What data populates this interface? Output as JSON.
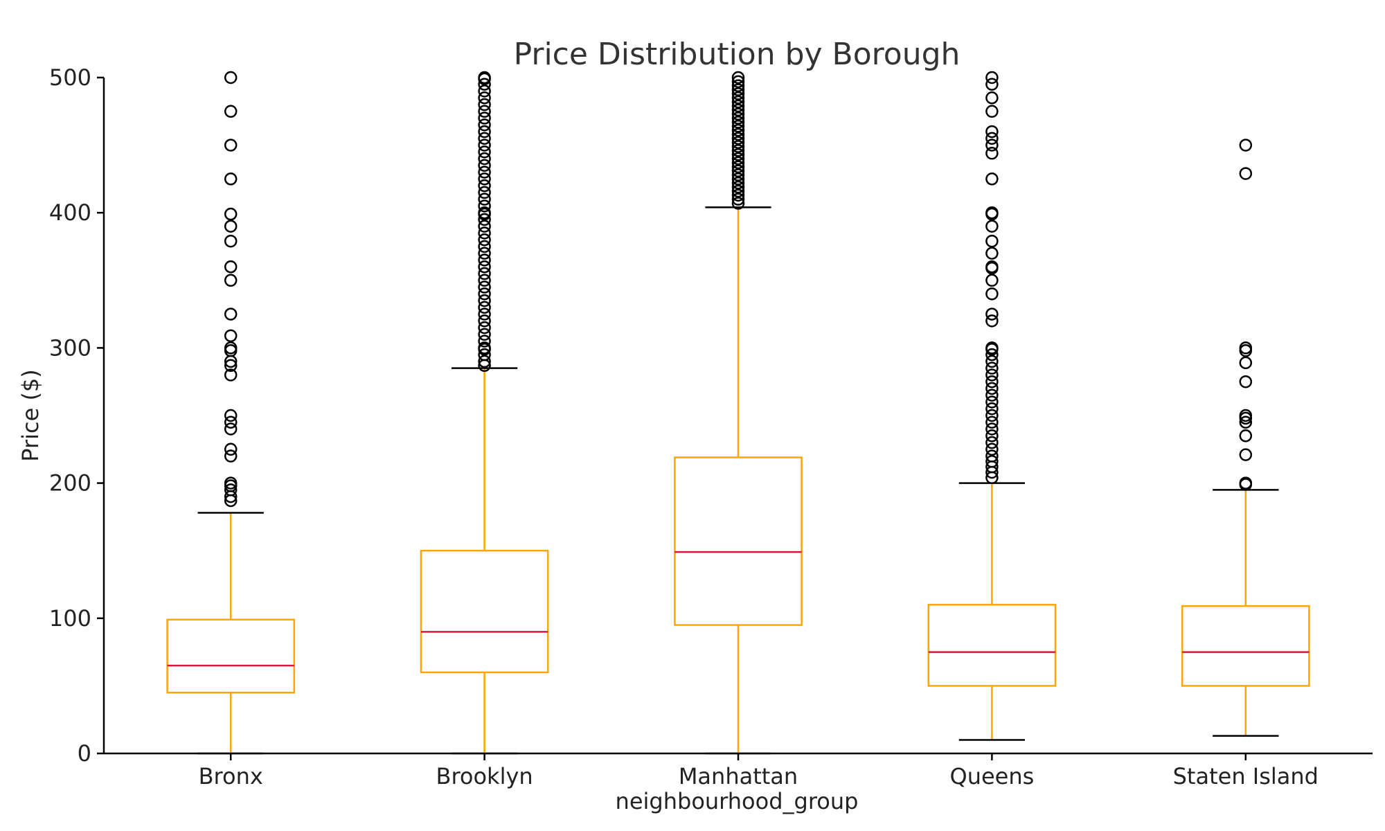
{
  "colors": {
    "box": "#FFA500",
    "median": "#DC143C",
    "cap": "#000000",
    "flier": "#000000",
    "axis": "#000000"
  },
  "chart_data": {
    "type": "box",
    "title": "Price Distribution by Borough",
    "xlabel": "neighbourhood_group",
    "ylabel": "Price ($)",
    "ylim": [
      0,
      500
    ],
    "yticks": [
      0,
      100,
      200,
      300,
      400,
      500
    ],
    "grid": false,
    "categories": [
      "Bronx",
      "Brooklyn",
      "Manhattan",
      "Queens",
      "Staten Island"
    ],
    "boxes": [
      {
        "category": "Bronx",
        "q1": 45,
        "median": 65,
        "q3": 99,
        "whisker_low": 0,
        "whisker_high": 178,
        "fliers": [
          187,
          190,
          195,
          198,
          200,
          220,
          225,
          240,
          245,
          250,
          280,
          287,
          290,
          298,
          300,
          309,
          325,
          350,
          360,
          379,
          390,
          399,
          425,
          450,
          475,
          500
        ]
      },
      {
        "category": "Brooklyn",
        "q1": 60,
        "median": 90,
        "q3": 150,
        "whisker_low": 0,
        "whisker_high": 285,
        "fliers": [
          287,
          290,
          295,
          299,
          300,
          305,
          310,
          315,
          320,
          325,
          330,
          335,
          340,
          345,
          350,
          355,
          360,
          365,
          370,
          375,
          380,
          385,
          390,
          395,
          399,
          400,
          405,
          410,
          415,
          420,
          425,
          430,
          435,
          440,
          445,
          450,
          455,
          460,
          465,
          470,
          475,
          480,
          485,
          490,
          495,
          499,
          500
        ]
      },
      {
        "category": "Manhattan",
        "q1": 95,
        "median": 149,
        "q3": 219,
        "whisker_low": 0,
        "whisker_high": 404,
        "fliers": [
          407,
          410,
          413,
          416,
          419,
          422,
          425,
          428,
          431,
          434,
          437,
          440,
          443,
          446,
          449,
          452,
          455,
          458,
          461,
          464,
          467,
          470,
          473,
          476,
          479,
          482,
          485,
          488,
          491,
          494,
          497,
          500
        ]
      },
      {
        "category": "Queens",
        "q1": 50,
        "median": 75,
        "q3": 110,
        "whisker_low": 10,
        "whisker_high": 200,
        "fliers": [
          204,
          208,
          212,
          216,
          220,
          225,
          230,
          235,
          240,
          245,
          250,
          255,
          260,
          265,
          270,
          275,
          280,
          285,
          290,
          295,
          299,
          300,
          320,
          325,
          340,
          350,
          359,
          360,
          370,
          379,
          390,
          399,
          400,
          425,
          444,
          450,
          455,
          460,
          475,
          485,
          495,
          500
        ]
      },
      {
        "category": "Staten Island",
        "q1": 50,
        "median": 75,
        "q3": 109,
        "whisker_low": 13,
        "whisker_high": 195,
        "fliers": [
          199,
          200,
          221,
          235,
          245,
          248,
          250,
          275,
          289,
          298,
          300,
          429,
          450
        ]
      }
    ]
  }
}
